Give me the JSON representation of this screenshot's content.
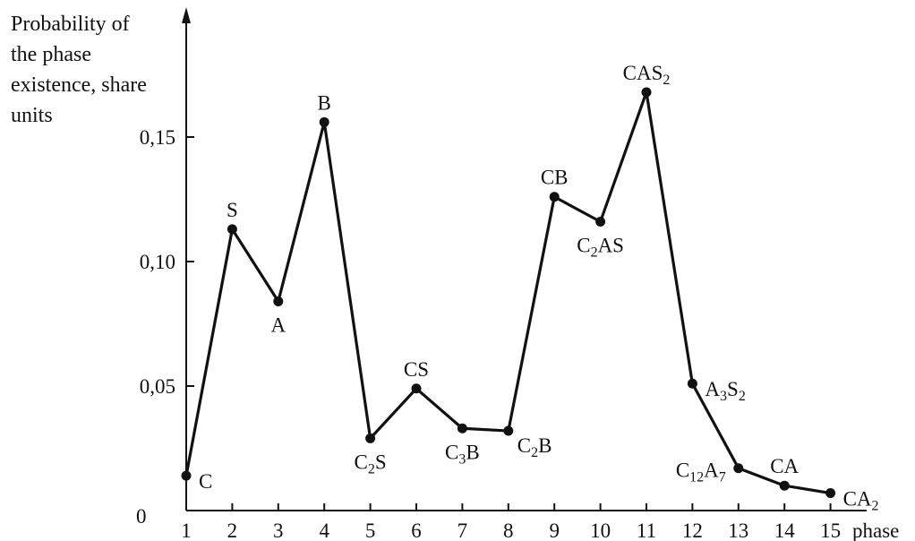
{
  "chart_data": {
    "type": "line",
    "ylabel_lines": [
      "Probability of",
      "the phase",
      "existence, share",
      "units"
    ],
    "xlabel": "phase",
    "origin_label": "0",
    "x": [
      1,
      2,
      3,
      4,
      5,
      6,
      7,
      8,
      9,
      10,
      11,
      12,
      13,
      14,
      15
    ],
    "x_ticks": [
      "1",
      "2",
      "3",
      "4",
      "5",
      "6",
      "7",
      "8",
      "9",
      "10",
      "11",
      "12",
      "13",
      "14",
      "15"
    ],
    "y_ticks": [
      {
        "value": 0.05,
        "label": "0,05"
      },
      {
        "value": 0.1,
        "label": "0,10"
      },
      {
        "value": 0.15,
        "label": "0,15"
      }
    ],
    "ylim": [
      0,
      0.2
    ],
    "xlim": [
      1,
      15.6
    ],
    "grid": false,
    "series": [
      {
        "values": [
          0.014,
          0.113,
          0.084,
          0.156,
          0.029,
          0.049,
          0.033,
          0.032,
          0.126,
          0.116,
          0.168,
          0.051,
          0.017,
          0.01,
          0.007
        ],
        "labels": [
          {
            "text": "C",
            "pos": "right"
          },
          {
            "text": "S",
            "pos": "above"
          },
          {
            "text": "A",
            "pos": "below"
          },
          {
            "text": "B",
            "pos": "above"
          },
          {
            "base": "C",
            "sub": "2",
            "tail": "S",
            "pos": "below"
          },
          {
            "text": "CS",
            "pos": "above"
          },
          {
            "base": "C",
            "sub": "3",
            "tail": "B",
            "pos": "below"
          },
          {
            "base": "C",
            "sub": "2",
            "tail": "B",
            "pos": "below-right"
          },
          {
            "text": "CB",
            "pos": "above"
          },
          {
            "base": "C",
            "sub": "2",
            "tail": "AS",
            "pos": "below"
          },
          {
            "base": "CAS",
            "sub": "2",
            "tail": "",
            "pos": "above"
          },
          {
            "base": "A",
            "sub": "3",
            "tail": "S",
            "sub2": "2",
            "pos": "right"
          },
          {
            "base": "C",
            "sub": "12",
            "tail": "A",
            "sub2": "7",
            "pos": "left"
          },
          {
            "text": "CA",
            "pos": "above"
          },
          {
            "base": "CA",
            "sub": "2",
            "tail": "",
            "pos": "right"
          }
        ]
      }
    ]
  }
}
